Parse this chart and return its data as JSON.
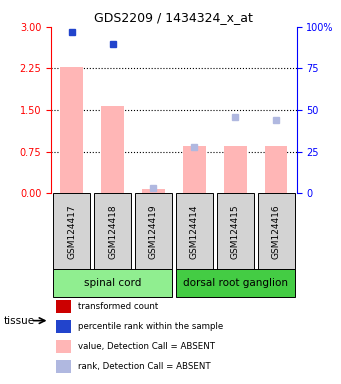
{
  "title": "GDS2209 / 1434324_x_at",
  "samples": [
    "GSM124417",
    "GSM124418",
    "GSM124419",
    "GSM124414",
    "GSM124415",
    "GSM124416"
  ],
  "tissue_groups": [
    {
      "label": "spinal cord",
      "samples": [
        "GSM124417",
        "GSM124418",
        "GSM124419"
      ],
      "color": "#90ee90"
    },
    {
      "label": "dorsal root ganglion",
      "samples": [
        "GSM124414",
        "GSM124415",
        "GSM124416"
      ],
      "color": "#00cc00"
    }
  ],
  "bar_values": [
    2.27,
    1.57,
    0.08,
    0.85,
    0.85,
    0.85
  ],
  "bar_absent": [
    true,
    true,
    true,
    true,
    true,
    true
  ],
  "rank_values": [
    97,
    90,
    3,
    28,
    46,
    44
  ],
  "rank_absent": [
    false,
    false,
    true,
    true,
    true,
    true
  ],
  "left_ylim": [
    0,
    3
  ],
  "right_ylim": [
    0,
    100
  ],
  "left_yticks": [
    0,
    0.75,
    1.5,
    2.25,
    3
  ],
  "right_yticks": [
    0,
    25,
    50,
    75,
    100
  ],
  "bar_color_absent": "#ffb6b6",
  "bar_color_present": "#ff4444",
  "rank_dot_absent": "#b0b8e0",
  "rank_dot_present": "#2244cc",
  "tissue_label": "tissue",
  "legend_items": [
    {
      "label": "transformed count",
      "color": "#cc0000",
      "marker": "s"
    },
    {
      "label": "percentile rank within the sample",
      "color": "#2244cc",
      "marker": "s"
    },
    {
      "label": "value, Detection Call = ABSENT",
      "color": "#ffb6b6",
      "marker": "s"
    },
    {
      "label": "rank, Detection Call = ABSENT",
      "color": "#b0b8e0",
      "marker": "s"
    }
  ]
}
